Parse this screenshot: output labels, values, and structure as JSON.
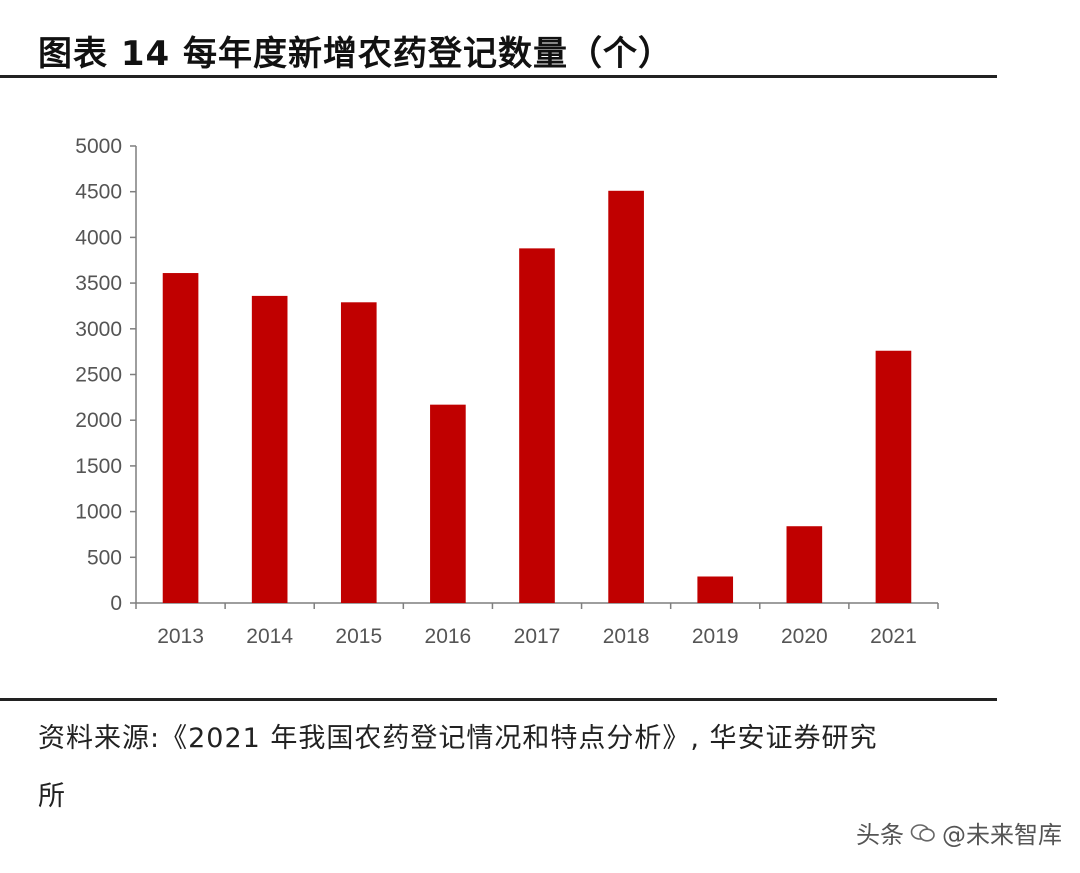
{
  "figure": {
    "title": "图表 14 每年度新增农药登记数量（个）",
    "source_line1": "资料来源:《2021 年我国农药登记情况和特点分析》, 华安证券研究",
    "source_line2": "所"
  },
  "watermark": {
    "platform": "头条",
    "account": "@未来智库",
    "icon": "wechat-bubbles-icon"
  },
  "colors": {
    "bar": "#c00000",
    "rule": "#222222",
    "axis": "#7f7f7f"
  },
  "chart_data": {
    "type": "bar",
    "title": "",
    "xlabel": "",
    "ylabel": "",
    "categories": [
      "2013",
      "2014",
      "2015",
      "2016",
      "2017",
      "2018",
      "2019",
      "2020",
      "2021"
    ],
    "values": [
      3610,
      3360,
      3290,
      2170,
      3880,
      4510,
      290,
      840,
      2760
    ],
    "ylim": [
      0,
      5000
    ],
    "yticks": [
      0,
      500,
      1000,
      1500,
      2000,
      2500,
      3000,
      3500,
      4000,
      4500,
      5000
    ],
    "grid": false,
    "legend": "none"
  }
}
